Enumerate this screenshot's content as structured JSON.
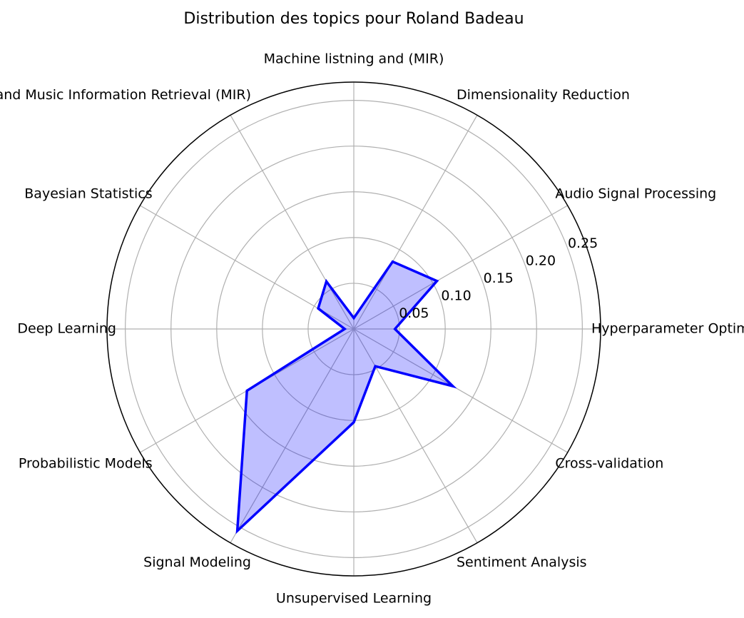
{
  "chart_data": {
    "type": "radar",
    "title": "Distribution des topics pour Roland Badeau",
    "categories": [
      "Hyperparameter Optimization",
      "Audio Signal Processing",
      "Dimensionality Reduction",
      "Machine listning and (MIR)",
      "Machine Listening and Music Information Retrieval (MIR)",
      "Bayesian Statistics",
      "Deep Learning",
      "Probabilistic Models",
      "Signal Modeling",
      "Unsupervised Learning",
      "Sentiment Analysis",
      "Cross-validation"
    ],
    "series": [
      {
        "values": [
          0.045,
          0.105,
          0.085,
          0.012,
          0.06,
          0.045,
          0.01,
          0.135,
          0.255,
          0.102,
          0.047,
          0.125
        ],
        "color": "#0000ff",
        "fill": "#0000ff",
        "fill_opacity": 0.25
      }
    ],
    "r_ticks": [
      0.05,
      0.1,
      0.15,
      0.2,
      0.25
    ],
    "r_tick_labels": [
      "0.05",
      "0.10",
      "0.15",
      "0.20",
      "0.25"
    ],
    "r_max": 0.27,
    "grid": true,
    "start_angle_deg": 0,
    "direction": "counterclockwise",
    "grid_color": "#b0b0b0"
  }
}
